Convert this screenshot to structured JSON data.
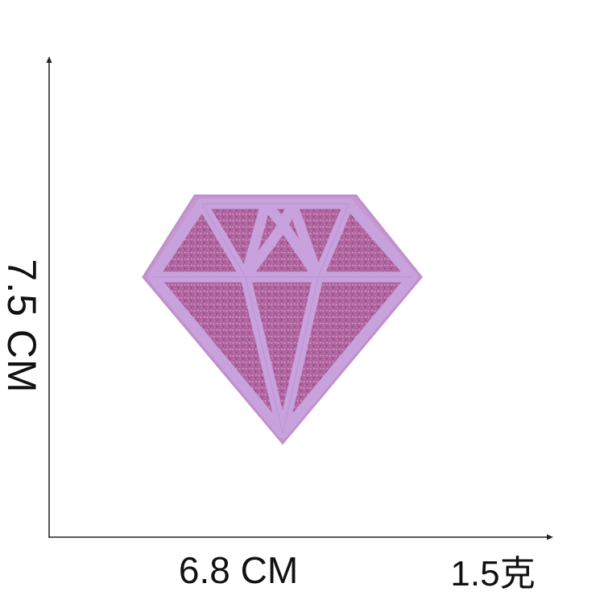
{
  "labels": {
    "height": "7.5 CM",
    "width": "6.8 CM",
    "weight": "1.5克"
  },
  "colors": {
    "background": "#ffffff",
    "axis": "#222222",
    "text": "#111111",
    "patch_border": "#c99ad0",
    "patch_glitter": "#b46aa6",
    "patch_stitch": "#c9a0dc"
  },
  "icons": {
    "product": "diamond-icon"
  }
}
